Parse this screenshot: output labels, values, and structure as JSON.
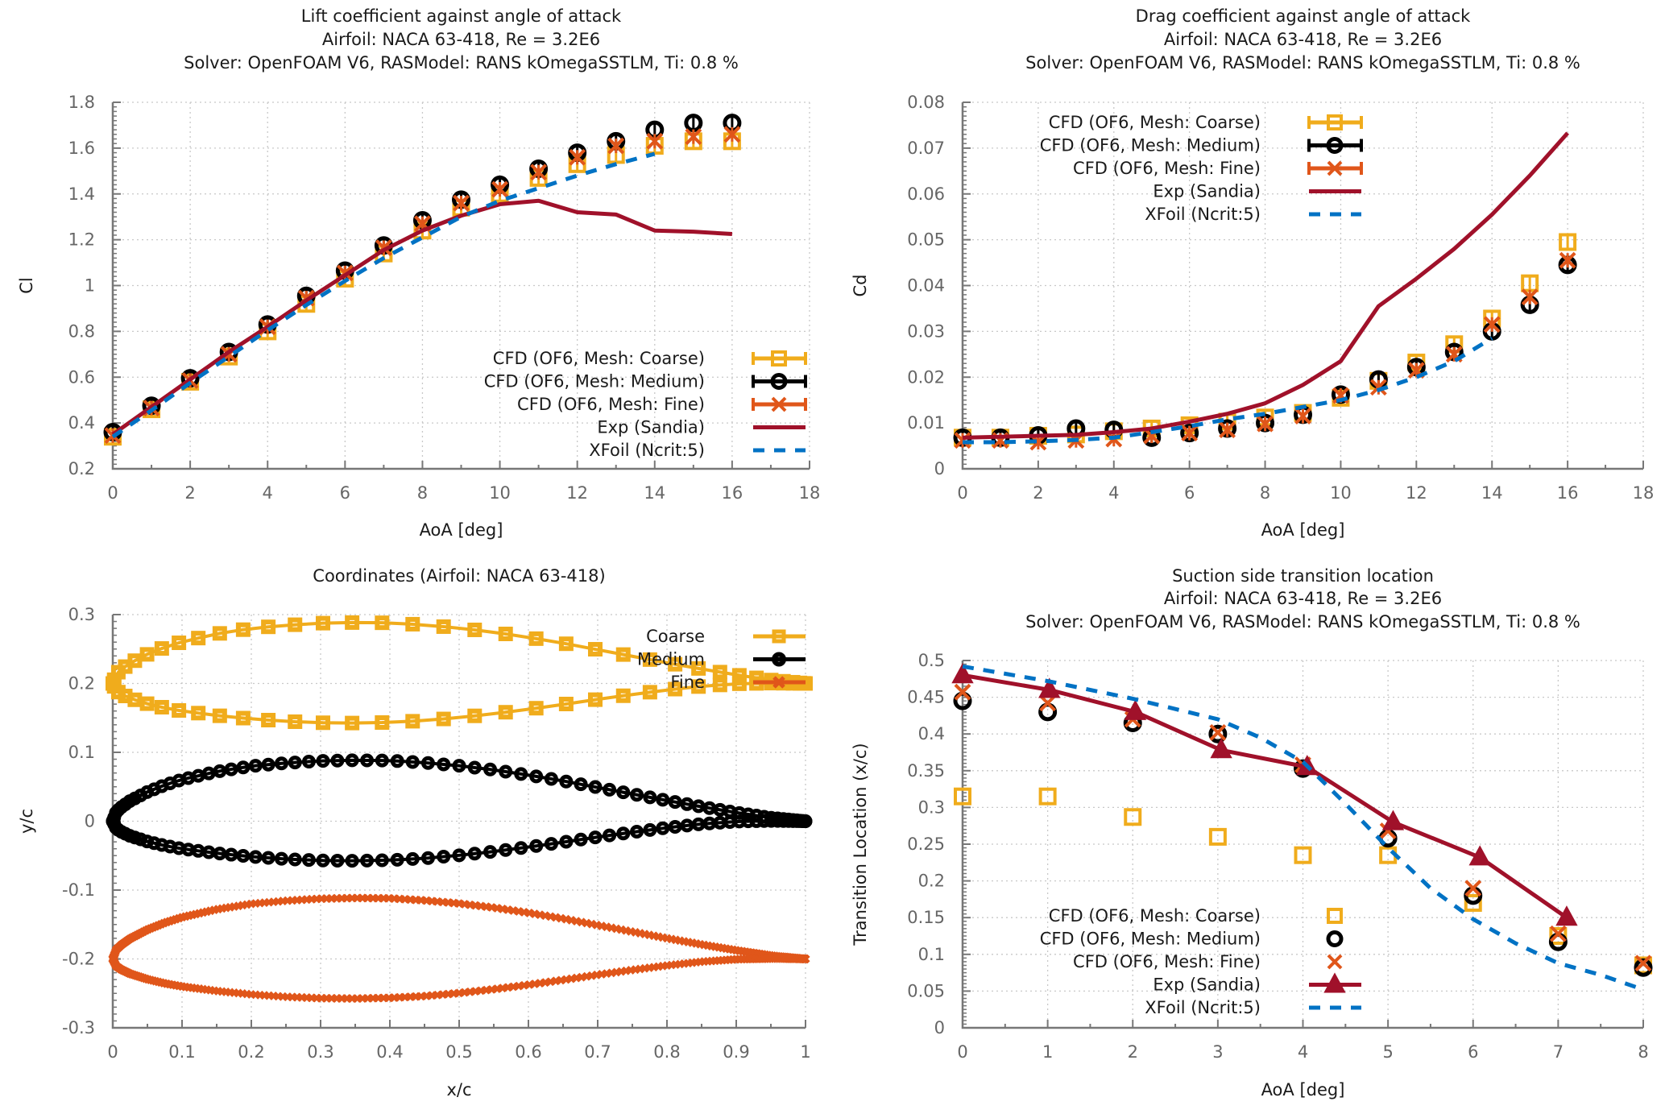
{
  "colors": {
    "coarse": "#f0ac1c",
    "medium": "#000000",
    "fine": "#e0561a",
    "exp": "#a0112a",
    "xfoil": "#0072c4"
  },
  "chart_data": [
    {
      "id": "lift",
      "type": "line",
      "title": [
        "Lift coefficient against angle of attack",
        "Airfoil: NACA 63-418, Re = 3.2E6",
        "Solver: OpenFOAM V6, RASModel: RANS kOmegaSSTLM, Ti: 0.8 %"
      ],
      "xlabel": "AoA [deg]",
      "ylabel": "Cl",
      "xlim": [
        0,
        18
      ],
      "ylim": [
        0.2,
        1.8
      ],
      "xticks": [
        0,
        2,
        4,
        6,
        8,
        10,
        12,
        14,
        16,
        18
      ],
      "yticks": [
        0.2,
        0.4,
        0.6,
        0.8,
        1,
        1.2,
        1.4,
        1.6,
        1.8
      ],
      "xtick_labels": [
        "0",
        "2",
        "4",
        "6",
        "8",
        "10",
        "12",
        "14",
        "16",
        "18"
      ],
      "ytick_labels": [
        "0.2",
        "0.4",
        "0.6",
        "0.8",
        "1",
        "1.2",
        "1.4",
        "1.6",
        "1.8"
      ],
      "grid": true,
      "legend_position": "bottom-right",
      "series": [
        {
          "name": "CFD (OF6, Mesh: Coarse)",
          "style": "errorbars-square",
          "color_key": "coarse",
          "x": [
            0,
            1,
            2,
            3,
            4,
            5,
            6,
            7,
            8,
            9,
            10,
            11,
            12,
            13,
            14,
            15,
            16
          ],
          "y": [
            0.34,
            0.46,
            0.58,
            0.69,
            0.8,
            0.92,
            1.03,
            1.14,
            1.24,
            1.34,
            1.4,
            1.47,
            1.53,
            1.57,
            1.61,
            1.63,
            1.63
          ]
        },
        {
          "name": "CFD (OF6, Mesh: Medium)",
          "style": "errorbars-circle",
          "color_key": "medium",
          "x": [
            0,
            1,
            2,
            3,
            4,
            5,
            6,
            7,
            8,
            9,
            10,
            11,
            12,
            13,
            14,
            15,
            16
          ],
          "y": [
            0.36,
            0.475,
            0.595,
            0.71,
            0.83,
            0.955,
            1.065,
            1.175,
            1.285,
            1.375,
            1.44,
            1.51,
            1.58,
            1.63,
            1.68,
            1.71,
            1.71
          ]
        },
        {
          "name": "CFD (OF6, Mesh: Fine)",
          "style": "errorbars-cross",
          "color_key": "fine",
          "x": [
            0,
            1,
            2,
            3,
            4,
            5,
            6,
            7,
            8,
            9,
            10,
            11,
            12,
            13,
            14,
            15,
            16
          ],
          "y": [
            0.345,
            0.465,
            0.585,
            0.7,
            0.82,
            0.945,
            1.055,
            1.165,
            1.27,
            1.36,
            1.42,
            1.495,
            1.56,
            1.61,
            1.63,
            1.65,
            1.66
          ]
        },
        {
          "name": "Exp (Sandia)",
          "style": "line",
          "color_key": "exp",
          "x": [
            0,
            1,
            2,
            3,
            4,
            5,
            6,
            7,
            8,
            9,
            10,
            11,
            12,
            13,
            14,
            15,
            16
          ],
          "y": [
            0.35,
            0.47,
            0.59,
            0.71,
            0.82,
            0.935,
            1.045,
            1.155,
            1.24,
            1.305,
            1.355,
            1.37,
            1.32,
            1.31,
            1.24,
            1.235,
            1.225
          ]
        },
        {
          "name": "XFoil (Ncrit:5)",
          "style": "dashed",
          "color_key": "xfoil",
          "x": [
            0,
            1,
            2,
            3,
            4,
            5,
            6,
            7,
            8,
            9,
            10,
            11,
            12,
            13,
            14
          ],
          "y": [
            0.34,
            0.455,
            0.575,
            0.69,
            0.805,
            0.915,
            1.02,
            1.12,
            1.21,
            1.3,
            1.37,
            1.425,
            1.48,
            1.53,
            1.575
          ]
        }
      ]
    },
    {
      "id": "drag",
      "type": "line",
      "title": [
        "Drag coefficient against angle of attack",
        "Airfoil: NACA 63-418, Re = 3.2E6",
        "Solver: OpenFOAM V6, RASModel: RANS kOmegaSSTLM, Ti: 0.8 %"
      ],
      "xlabel": "AoA [deg]",
      "ylabel": "Cd",
      "xlim": [
        0,
        18
      ],
      "ylim": [
        0,
        0.08
      ],
      "xticks": [
        0,
        2,
        4,
        6,
        8,
        10,
        12,
        14,
        16,
        18
      ],
      "yticks": [
        0,
        0.01,
        0.02,
        0.03,
        0.04,
        0.05,
        0.06,
        0.07,
        0.08
      ],
      "xtick_labels": [
        "0",
        "2",
        "4",
        "6",
        "8",
        "10",
        "12",
        "14",
        "16",
        "18"
      ],
      "ytick_labels": [
        "0",
        "0.01",
        "0.02",
        "0.03",
        "0.04",
        "0.05",
        "0.06",
        "0.07",
        "0.08"
      ],
      "grid": true,
      "legend_position": "top-left",
      "series": [
        {
          "name": "CFD (OF6, Mesh: Coarse)",
          "style": "errorbars-square",
          "color_key": "coarse",
          "x": [
            0,
            1,
            2,
            3,
            4,
            5,
            6,
            7,
            8,
            9,
            10,
            11,
            12,
            13,
            14,
            15,
            16
          ],
          "y": [
            0.0068,
            0.0068,
            0.0072,
            0.0075,
            0.0082,
            0.0088,
            0.0095,
            0.0103,
            0.0112,
            0.0122,
            0.0155,
            0.0192,
            0.0232,
            0.0272,
            0.0328,
            0.0405,
            0.0495
          ]
        },
        {
          "name": "CFD (OF6, Mesh: Medium)",
          "style": "errorbars-circle",
          "color_key": "medium",
          "x": [
            0,
            1,
            2,
            3,
            4,
            5,
            6,
            7,
            8,
            9,
            10,
            11,
            12,
            13,
            14,
            15,
            16
          ],
          "y": [
            0.0068,
            0.0068,
            0.0073,
            0.0088,
            0.0085,
            0.0068,
            0.0078,
            0.0088,
            0.01,
            0.0118,
            0.0162,
            0.0195,
            0.0222,
            0.0255,
            0.03,
            0.0358,
            0.0445
          ]
        },
        {
          "name": "CFD (OF6, Mesh: Fine)",
          "style": "errorbars-cross",
          "color_key": "fine",
          "x": [
            0,
            1,
            2,
            3,
            4,
            5,
            6,
            7,
            8,
            9,
            10,
            11,
            12,
            13,
            14,
            15,
            16
          ],
          "y": [
            0.0062,
            0.0062,
            0.0058,
            0.0062,
            0.0065,
            0.0072,
            0.0078,
            0.0085,
            0.0098,
            0.0115,
            0.016,
            0.0178,
            0.0215,
            0.025,
            0.0315,
            0.0375,
            0.0455
          ]
        },
        {
          "name": "Exp (Sandia)",
          "style": "line",
          "color_key": "exp",
          "x": [
            0,
            1,
            2,
            3,
            4,
            5,
            6,
            7,
            8,
            9,
            10,
            11,
            12,
            13,
            14,
            15,
            16
          ],
          "y": [
            0.0068,
            0.007,
            0.0072,
            0.0074,
            0.008,
            0.0088,
            0.0103,
            0.012,
            0.0143,
            0.0183,
            0.0235,
            0.0355,
            0.0415,
            0.048,
            0.0555,
            0.064,
            0.0733
          ]
        },
        {
          "name": "XFoil (Ncrit:5)",
          "style": "dashed",
          "color_key": "xfoil",
          "x": [
            0,
            1,
            2,
            3,
            4,
            5,
            6,
            7,
            8,
            9,
            10,
            11,
            12,
            13,
            14
          ],
          "y": [
            0.0058,
            0.0058,
            0.006,
            0.0063,
            0.0068,
            0.008,
            0.0093,
            0.0108,
            0.012,
            0.0135,
            0.015,
            0.0172,
            0.02,
            0.0235,
            0.0285
          ]
        }
      ]
    },
    {
      "id": "coords",
      "type": "scatter",
      "title": [
        "Coordinates (Airfoil: NACA 63-418)"
      ],
      "xlabel": "x/c",
      "ylabel": "y/c",
      "xlim": [
        0,
        1
      ],
      "ylim": [
        -0.3,
        0.3
      ],
      "xticks": [
        0,
        0.1,
        0.2,
        0.3,
        0.4,
        0.5,
        0.6,
        0.7,
        0.8,
        0.9,
        1
      ],
      "yticks": [
        -0.3,
        -0.2,
        -0.1,
        0,
        0.1,
        0.2,
        0.3
      ],
      "xtick_labels": [
        "0",
        "0.1",
        "0.2",
        "0.3",
        "0.4",
        "0.5",
        "0.6",
        "0.7",
        "0.8",
        "0.9",
        "1"
      ],
      "ytick_labels": [
        "-0.3",
        "-0.2",
        "-0.1",
        "0",
        "0.1",
        "0.2",
        "0.3"
      ],
      "grid": true,
      "legend_position": "top-right",
      "airfoil_profile": {
        "description": "NACA 63-418 upper/lower surface (y/c) at x/c, shown offset per mesh",
        "x": [
          0,
          0.005,
          0.0125,
          0.025,
          0.05,
          0.075,
          0.1,
          0.15,
          0.2,
          0.25,
          0.3,
          0.35,
          0.4,
          0.45,
          0.5,
          0.55,
          0.6,
          0.65,
          0.7,
          0.75,
          0.8,
          0.85,
          0.9,
          0.95,
          1.0
        ],
        "upper": [
          0,
          0.0135,
          0.0205,
          0.0295,
          0.0425,
          0.0525,
          0.0605,
          0.072,
          0.08,
          0.0845,
          0.0875,
          0.0885,
          0.088,
          0.085,
          0.0805,
          0.0745,
          0.067,
          0.0585,
          0.049,
          0.0395,
          0.03,
          0.021,
          0.0125,
          0.005,
          0
        ],
        "lower": [
          0,
          -0.0105,
          -0.0155,
          -0.0215,
          -0.0295,
          -0.0355,
          -0.04,
          -0.0465,
          -0.0515,
          -0.055,
          -0.057,
          -0.0575,
          -0.0565,
          -0.054,
          -0.0495,
          -0.044,
          -0.0375,
          -0.0305,
          -0.023,
          -0.016,
          -0.0095,
          -0.004,
          -0.0005,
          0.0005,
          0
        ]
      },
      "series": [
        {
          "name": "Coarse",
          "style": "line-square",
          "color_key": "coarse",
          "y_offset": 0.2,
          "n_points": 70
        },
        {
          "name": "Medium",
          "style": "line-circle",
          "color_key": "medium",
          "y_offset": 0.0,
          "n_points": 140
        },
        {
          "name": "Fine",
          "style": "line-cross",
          "color_key": "fine",
          "y_offset": -0.2,
          "n_points": 400
        }
      ]
    },
    {
      "id": "transition",
      "type": "line",
      "title": [
        "Suction side transition location",
        "Airfoil: NACA 63-418, Re = 3.2E6",
        "Solver: OpenFOAM V6, RASModel: RANS kOmegaSSTLM, Ti: 0.8 %"
      ],
      "xlabel": "AoA [deg]",
      "ylabel": "Transition Location (x/c)",
      "xlim": [
        0,
        8
      ],
      "ylim": [
        0,
        0.5
      ],
      "xticks": [
        0,
        1,
        2,
        3,
        4,
        5,
        6,
        7,
        8
      ],
      "yticks": [
        0,
        0.05,
        0.1,
        0.15,
        0.2,
        0.25,
        0.3,
        0.35,
        0.4,
        0.45,
        0.5
      ],
      "xtick_labels": [
        "0",
        "1",
        "2",
        "3",
        "4",
        "5",
        "6",
        "7",
        "8"
      ],
      "ytick_labels": [
        "0",
        "0.05",
        "0.1",
        "0.15",
        "0.2",
        "0.25",
        "0.3",
        "0.35",
        "0.4",
        "0.45",
        "0.5"
      ],
      "grid": true,
      "legend_position": "bottom-left",
      "series": [
        {
          "name": "CFD (OF6, Mesh: Coarse)",
          "style": "square",
          "color_key": "coarse",
          "x": [
            0,
            1,
            2,
            3,
            4,
            5,
            6,
            7,
            8
          ],
          "y": [
            0.315,
            0.315,
            0.287,
            0.26,
            0.235,
            0.235,
            0.17,
            0.125,
            0.085
          ]
        },
        {
          "name": "CFD (OF6, Mesh: Medium)",
          "style": "circle",
          "color_key": "medium",
          "x": [
            0,
            1,
            2,
            3,
            4,
            5,
            6,
            7,
            8
          ],
          "y": [
            0.445,
            0.43,
            0.415,
            0.4,
            0.353,
            0.258,
            0.18,
            0.117,
            0.082
          ]
        },
        {
          "name": "CFD (OF6, Mesh: Fine)",
          "style": "cross",
          "color_key": "fine",
          "x": [
            0,
            1,
            2,
            3,
            4,
            5,
            6,
            7,
            8
          ],
          "y": [
            0.457,
            0.442,
            0.42,
            0.402,
            0.358,
            0.268,
            0.19,
            0.128,
            0.088
          ]
        },
        {
          "name": "Exp (Sandia)",
          "style": "line-triangle",
          "color_key": "exp",
          "x": [
            0,
            1.02,
            2.03,
            3.04,
            4.05,
            5.06,
            6.08,
            7.1
          ],
          "y": [
            0.48,
            0.46,
            0.43,
            0.378,
            0.355,
            0.28,
            0.232,
            0.15
          ]
        },
        {
          "name": "XFoil (Ncrit:5)",
          "style": "dashed",
          "color_key": "xfoil",
          "x": [
            0,
            1,
            2,
            3,
            3.5,
            4,
            4.5,
            5,
            5.5,
            6,
            6.5,
            7,
            7.5,
            8
          ],
          "y": [
            0.492,
            0.472,
            0.448,
            0.42,
            0.395,
            0.362,
            0.305,
            0.245,
            0.19,
            0.148,
            0.115,
            0.088,
            0.072,
            0.052
          ]
        }
      ]
    }
  ]
}
